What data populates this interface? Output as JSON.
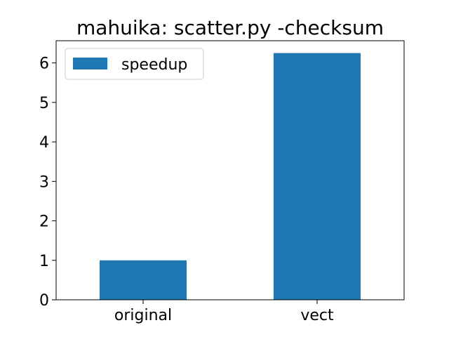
{
  "chart_data": {
    "type": "bar",
    "title": "mahuika: scatter.py -checksum",
    "categories": [
      "original",
      "vect"
    ],
    "series": [
      {
        "name": "speedup",
        "values": [
          1.0,
          6.25
        ],
        "color": "#1f77b4"
      }
    ],
    "xlabel": "",
    "ylabel": "",
    "ylim": [
      0,
      6.5625
    ],
    "yticks": [
      0,
      1,
      2,
      3,
      4,
      5,
      6
    ],
    "grid": false,
    "legend_position": "top-left"
  }
}
